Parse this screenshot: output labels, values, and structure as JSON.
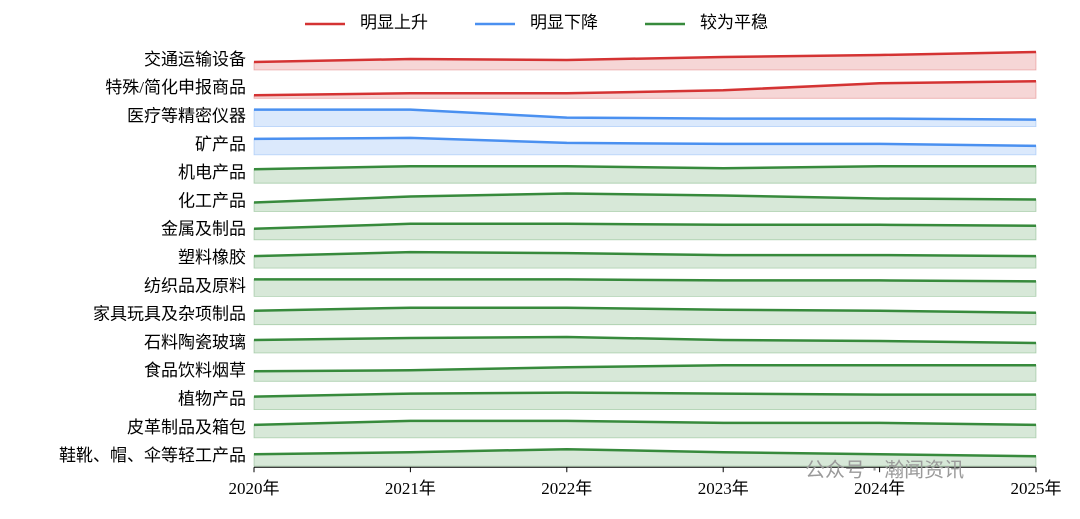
{
  "chart_data": {
    "type": "ridgeline",
    "x": [
      "2020年",
      "2021年",
      "2022年",
      "2023年",
      "2024年",
      "2025年"
    ],
    "ylim": [
      0,
      28
    ],
    "legend": [
      {
        "name": "明显上升",
        "color": "#d43333"
      },
      {
        "name": "明显下降",
        "color": "#4a90f0"
      },
      {
        "name": "较为平稳",
        "color": "#378a3c"
      }
    ],
    "series": [
      {
        "name": "交通运输设备",
        "group": 0,
        "values": [
          8,
          11,
          10,
          13,
          15,
          18
        ]
      },
      {
        "name": "特殊/简化申报商品",
        "group": 0,
        "values": [
          3,
          5,
          5,
          8,
          15,
          17
        ]
      },
      {
        "name": "医疗等精密仪器",
        "group": 1,
        "values": [
          17,
          17,
          9,
          8,
          8,
          7
        ]
      },
      {
        "name": "矿产品",
        "group": 1,
        "values": [
          16,
          17,
          12,
          11,
          11,
          9
        ]
      },
      {
        "name": "机电产品",
        "group": 2,
        "values": [
          14,
          17,
          17,
          15,
          17,
          17
        ]
      },
      {
        "name": "化工产品",
        "group": 2,
        "values": [
          9,
          15,
          18,
          16,
          13,
          12
        ]
      },
      {
        "name": "金属及制品",
        "group": 2,
        "values": [
          11,
          16,
          16,
          15,
          15,
          14
        ]
      },
      {
        "name": "塑料橡胶",
        "group": 2,
        "values": [
          12,
          16,
          15,
          13,
          13,
          12
        ]
      },
      {
        "name": "纺织品及原料",
        "group": 2,
        "values": [
          17,
          17,
          17,
          16,
          16,
          15
        ]
      },
      {
        "name": "家具玩具及杂项制品",
        "group": 2,
        "values": [
          14,
          17,
          17,
          15,
          14,
          12
        ]
      },
      {
        "name": "石料陶瓷玻璃",
        "group": 2,
        "values": [
          13,
          15,
          16,
          13,
          12,
          10
        ]
      },
      {
        "name": "食品饮料烟草",
        "group": 2,
        "values": [
          10,
          11,
          14,
          16,
          16,
          16
        ]
      },
      {
        "name": "植物产品",
        "group": 2,
        "values": [
          13,
          16,
          17,
          16,
          15,
          15
        ]
      },
      {
        "name": "皮革制品及箱包",
        "group": 2,
        "values": [
          13,
          17,
          17,
          15,
          15,
          13
        ]
      },
      {
        "name": "鞋靴、帽、伞等轻工产品",
        "group": 2,
        "values": [
          12,
          14,
          17,
          14,
          12,
          10
        ]
      }
    ],
    "watermark": "公众号 · 瀚闻资讯"
  }
}
